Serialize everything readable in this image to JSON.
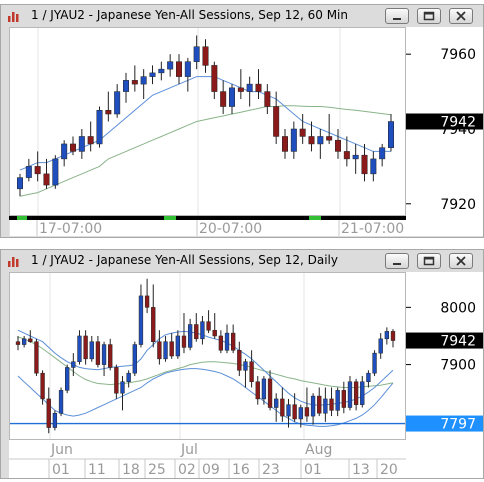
{
  "windows": [
    {
      "title": "1 / JYAU2 - Japanese Yen-All Sessions, Sep 12, 60 Min",
      "price_ticks": [
        "7960",
        "7940",
        "7920"
      ],
      "current_price": "7942",
      "time_labels": [
        "17-07:00",
        "20-07:00",
        "21-07:00"
      ]
    },
    {
      "title": "1 / JYAU2 - Japanese Yen-All Sessions, Sep 12, Daily",
      "price_ticks": [
        "8000",
        "7900"
      ],
      "current_price": "7942",
      "level_price": "7797",
      "month_labels": [
        "Jun",
        "Jul",
        "Aug"
      ],
      "day_labels": [
        "01",
        "11",
        "18",
        "25",
        "02",
        "09",
        "16",
        "23",
        "01",
        "13",
        "20"
      ]
    }
  ],
  "colors": {
    "up": "#1f4fbf",
    "down": "#8b1a1a",
    "ma_short": "#5b8fd8",
    "ma_long": "#8ab48a",
    "level_line": "#1f6fd6",
    "current_badge_bg": "#000000",
    "level_badge_bg": "#1e90ff"
  },
  "chart_data": [
    {
      "type": "candlestick",
      "title": "1 / JYAU2 - Japanese Yen-All Sessions, Sep 12, 60 Min",
      "y_ticks": [
        7960,
        7940,
        7920
      ],
      "ylim": [
        7917,
        7967
      ],
      "x_tick_labels": [
        "17-07:00",
        "20-07:00",
        "21-07:00"
      ],
      "last_price": 7942,
      "candles": [
        [
          7924,
          7928,
          7922,
          7927
        ],
        [
          7927,
          7932,
          7926,
          7930
        ],
        [
          7930,
          7934,
          7926,
          7928
        ],
        [
          7928,
          7932,
          7924,
          7925
        ],
        [
          7925,
          7933,
          7924,
          7932
        ],
        [
          7932,
          7937,
          7930,
          7936
        ],
        [
          7936,
          7938,
          7933,
          7934
        ],
        [
          7934,
          7940,
          7932,
          7938
        ],
        [
          7938,
          7942,
          7934,
          7936
        ],
        [
          7936,
          7946,
          7935,
          7945
        ],
        [
          7945,
          7950,
          7942,
          7944
        ],
        [
          7944,
          7952,
          7943,
          7950
        ],
        [
          7950,
          7955,
          7947,
          7953
        ],
        [
          7953,
          7957,
          7950,
          7952
        ],
        [
          7952,
          7956,
          7948,
          7954
        ],
        [
          7954,
          7957,
          7952,
          7955
        ],
        [
          7955,
          7958,
          7953,
          7956
        ],
        [
          7956,
          7960,
          7954,
          7958
        ],
        [
          7958,
          7960,
          7952,
          7954
        ],
        [
          7954,
          7959,
          7950,
          7958
        ],
        [
          7958,
          7965,
          7956,
          7962
        ],
        [
          7962,
          7964,
          7955,
          7957
        ],
        [
          7957,
          7958,
          7948,
          7950
        ],
        [
          7950,
          7953,
          7944,
          7946
        ],
        [
          7946,
          7952,
          7944,
          7951
        ],
        [
          7951,
          7956,
          7948,
          7950
        ],
        [
          7950,
          7954,
          7946,
          7952
        ],
        [
          7952,
          7956,
          7948,
          7950
        ],
        [
          7950,
          7952,
          7944,
          7946
        ],
        [
          7946,
          7950,
          7936,
          7938
        ],
        [
          7938,
          7940,
          7932,
          7934
        ],
        [
          7934,
          7942,
          7932,
          7940
        ],
        [
          7940,
          7944,
          7936,
          7938
        ],
        [
          7938,
          7942,
          7934,
          7936
        ],
        [
          7936,
          7940,
          7932,
          7938
        ],
        [
          7938,
          7944,
          7936,
          7937
        ],
        [
          7937,
          7940,
          7932,
          7934
        ],
        [
          7934,
          7938,
          7930,
          7932
        ],
        [
          7932,
          7936,
          7928,
          7933
        ],
        [
          7933,
          7936,
          7926,
          7928
        ],
        [
          7928,
          7934,
          7926,
          7932
        ],
        [
          7932,
          7936,
          7930,
          7935
        ],
        [
          7935,
          7944,
          7934,
          7942
        ]
      ],
      "ma_short": [
        7929,
        7930,
        7931,
        7931,
        7932,
        7933,
        7934,
        7935,
        7936,
        7937,
        7939,
        7941,
        7943,
        7945,
        7947,
        7949,
        7950,
        7951,
        7952,
        7953,
        7954,
        7954,
        7954,
        7953,
        7952,
        7951,
        7950,
        7950,
        7949,
        7948,
        7946,
        7944,
        7942,
        7941,
        7940,
        7939,
        7938,
        7937,
        7936,
        7935,
        7934,
        7934,
        7934
      ],
      "ma_long": [
        7922,
        7922.5,
        7923,
        7924,
        7925,
        7926,
        7927,
        7928,
        7929,
        7930,
        7932,
        7933,
        7934,
        7935,
        7936,
        7937,
        7938,
        7939,
        7940,
        7941,
        7942,
        7942.5,
        7943,
        7943.5,
        7944,
        7944.5,
        7945,
        7945.5,
        7946,
        7946,
        7946.2,
        7946.2,
        7946.1,
        7946,
        7946,
        7945.8,
        7945.5,
        7945.2,
        7945,
        7944.7,
        7944.4,
        7944.1,
        7943.8
      ]
    },
    {
      "type": "candlestick",
      "title": "1 / JYAU2 - Japanese Yen-All Sessions, Sep 12, Daily",
      "y_ticks": [
        8000,
        7900
      ],
      "ylim": [
        7770,
        8060
      ],
      "x_tick_labels": [
        "01",
        "11",
        "18",
        "25",
        "02",
        "09",
        "16",
        "23",
        "01",
        "13",
        "20"
      ],
      "month_labels": [
        "Jun",
        "Jul",
        "Aug"
      ],
      "last_price": 7942,
      "horizontal_line": 7797,
      "candles": [
        [
          7940,
          7950,
          7925,
          7935
        ],
        [
          7935,
          7950,
          7930,
          7945
        ],
        [
          7945,
          7960,
          7938,
          7940
        ],
        [
          7940,
          7945,
          7880,
          7885
        ],
        [
          7885,
          7890,
          7830,
          7840
        ],
        [
          7840,
          7860,
          7780,
          7790
        ],
        [
          7790,
          7820,
          7785,
          7815
        ],
        [
          7815,
          7860,
          7810,
          7855
        ],
        [
          7855,
          7900,
          7850,
          7895
        ],
        [
          7895,
          7920,
          7880,
          7905
        ],
        [
          7905,
          7960,
          7900,
          7950
        ],
        [
          7950,
          7960,
          7900,
          7910
        ],
        [
          7910,
          7950,
          7905,
          7940
        ],
        [
          7940,
          7950,
          7895,
          7900
        ],
        [
          7900,
          7940,
          7880,
          7935
        ],
        [
          7935,
          7945,
          7890,
          7895
        ],
        [
          7895,
          7900,
          7840,
          7850
        ],
        [
          7850,
          7880,
          7820,
          7870
        ],
        [
          7870,
          7890,
          7860,
          7885
        ],
        [
          7885,
          7940,
          7880,
          7935
        ],
        [
          7935,
          8040,
          7930,
          8020
        ],
        [
          8020,
          8050,
          7990,
          8000
        ],
        [
          8000,
          8040,
          7930,
          7940
        ],
        [
          7940,
          7960,
          7900,
          7910
        ],
        [
          7910,
          7950,
          7905,
          7940
        ],
        [
          7940,
          7955,
          7910,
          7915
        ],
        [
          7915,
          7960,
          7910,
          7950
        ],
        [
          7950,
          7990,
          7920,
          7930
        ],
        [
          7930,
          7980,
          7925,
          7970
        ],
        [
          7970,
          7990,
          7940,
          7945
        ],
        [
          7945,
          7985,
          7935,
          7975
        ],
        [
          7975,
          7995,
          7955,
          7960
        ],
        [
          7960,
          7990,
          7945,
          7950
        ],
        [
          7950,
          7960,
          7920,
          7925
        ],
        [
          7925,
          7970,
          7920,
          7955
        ],
        [
          7955,
          7970,
          7920,
          7925
        ],
        [
          7925,
          7940,
          7880,
          7890
        ],
        [
          7890,
          7910,
          7860,
          7905
        ],
        [
          7905,
          7925,
          7860,
          7870
        ],
        [
          7870,
          7880,
          7830,
          7840
        ],
        [
          7840,
          7880,
          7830,
          7875
        ],
        [
          7875,
          7890,
          7820,
          7825
        ],
        [
          7825,
          7850,
          7800,
          7840
        ],
        [
          7840,
          7860,
          7800,
          7810
        ],
        [
          7810,
          7840,
          7790,
          7830
        ],
        [
          7830,
          7850,
          7800,
          7805
        ],
        [
          7805,
          7830,
          7790,
          7825
        ],
        [
          7825,
          7860,
          7800,
          7810
        ],
        [
          7810,
          7850,
          7795,
          7845
        ],
        [
          7845,
          7860,
          7810,
          7815
        ],
        [
          7815,
          7860,
          7800,
          7840
        ],
        [
          7840,
          7860,
          7810,
          7820
        ],
        [
          7820,
          7860,
          7810,
          7855
        ],
        [
          7855,
          7870,
          7815,
          7825
        ],
        [
          7825,
          7880,
          7820,
          7870
        ],
        [
          7870,
          7875,
          7820,
          7830
        ],
        [
          7830,
          7880,
          7825,
          7870
        ],
        [
          7870,
          7890,
          7860,
          7885
        ],
        [
          7885,
          7925,
          7880,
          7920
        ],
        [
          7920,
          7955,
          7910,
          7945
        ],
        [
          7945,
          7965,
          7935,
          7958
        ],
        [
          7958,
          7962,
          7930,
          7942
        ]
      ],
      "ma_short": [
        7960,
        7955,
        7950,
        7945,
        7940,
        7930,
        7920,
        7912,
        7905,
        7900,
        7895,
        7893,
        7892,
        7891,
        7893,
        7895,
        7896,
        7897,
        7898,
        7900,
        7910,
        7925,
        7935,
        7945,
        7952,
        7955,
        7957,
        7958,
        7957,
        7955,
        7952,
        7948,
        7945,
        7942,
        7938,
        7932,
        7925,
        7918,
        7910,
        7900,
        7890,
        7880,
        7870,
        7860,
        7850,
        7842,
        7836,
        7832,
        7830,
        7829,
        7830,
        7831,
        7832,
        7834,
        7836,
        7840,
        7845,
        7852,
        7860,
        7870,
        7880,
        7890
      ],
      "ma_long": [
        7948,
        7945,
        7940,
        7935,
        7928,
        7920,
        7912,
        7904,
        7896,
        7888,
        7880,
        7874,
        7870,
        7867,
        7866,
        7865,
        7866,
        7867,
        7868,
        7870,
        7872,
        7875,
        7879,
        7883,
        7887,
        7890,
        7893,
        7896,
        7900,
        7902,
        7904,
        7905,
        7905,
        7904,
        7903,
        7902,
        7900,
        7898,
        7895,
        7892,
        7889,
        7886,
        7883,
        7880,
        7877,
        7875,
        7872,
        7870,
        7868,
        7866,
        7864,
        7862,
        7861,
        7860,
        7860,
        7860,
        7861,
        7862,
        7863,
        7864,
        7866,
        7868
      ],
      "band_lower": [
        7880,
        7870,
        7860,
        7850,
        7840,
        7830,
        7820,
        7815,
        7812,
        7810,
        7812,
        7815,
        7820,
        7825,
        7830,
        7835,
        7840,
        7845,
        7850,
        7855,
        7860,
        7868,
        7875,
        7880,
        7885,
        7888,
        7890,
        7892,
        7893,
        7893,
        7892,
        7890,
        7888,
        7885,
        7880,
        7875,
        7868,
        7860,
        7852,
        7844,
        7836,
        7828,
        7820,
        7812,
        7806,
        7800,
        7796,
        7794,
        7793,
        7792,
        7792,
        7793,
        7795,
        7798,
        7802,
        7806,
        7812,
        7820,
        7830,
        7842,
        7855,
        7868
      ]
    }
  ]
}
